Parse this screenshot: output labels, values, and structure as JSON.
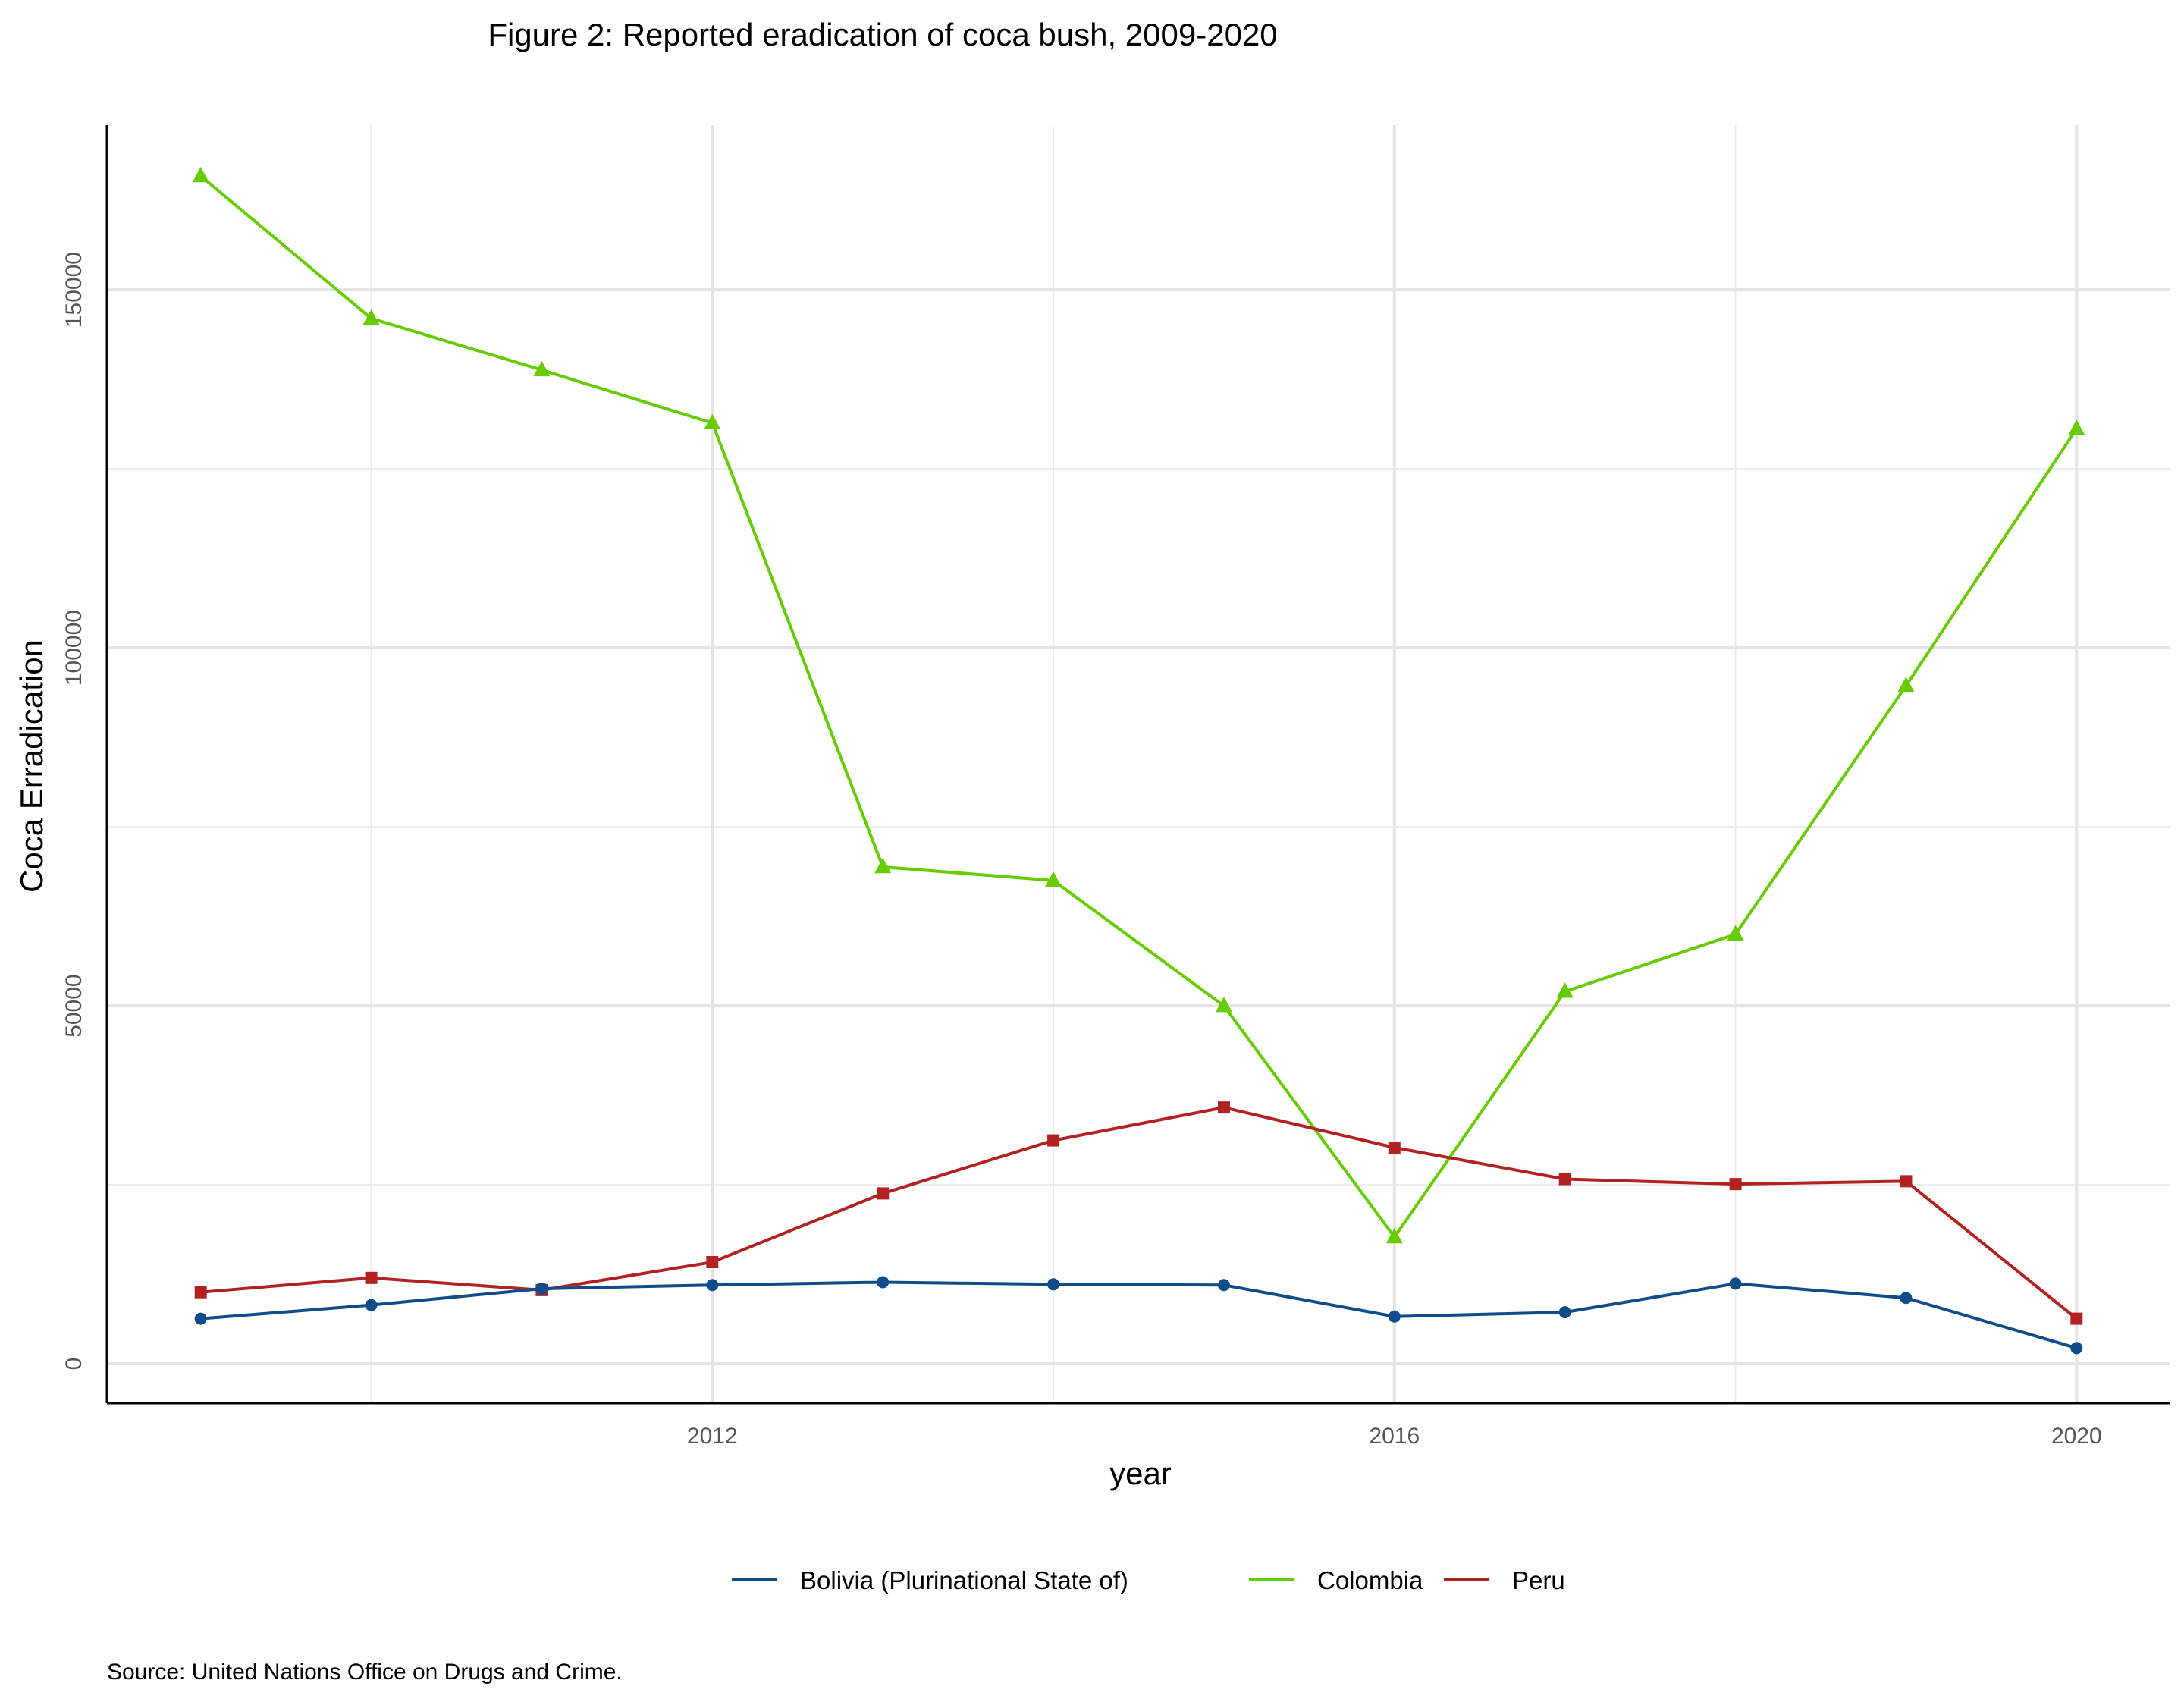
{
  "chart_data": {
    "type": "line",
    "title": "Figure 2: Reported eradication of coca bush, 2009-2020",
    "xlabel": "year",
    "ylabel": "Coca Erradication",
    "x": [
      2009,
      2010,
      2011,
      2012,
      2013,
      2014,
      2015,
      2016,
      2017,
      2018,
      2019,
      2020
    ],
    "xlim": [
      2008.45,
      2020.55
    ],
    "ylim": [
      -5500,
      173000
    ],
    "x_ticks": [
      2012,
      2016,
      2020
    ],
    "x_tick_labels": [
      "2012",
      "2016",
      "2020"
    ],
    "x_minor": [
      2010,
      2014,
      2018
    ],
    "y_ticks": [
      0,
      50000,
      100000,
      150000
    ],
    "y_tick_labels": [
      "0",
      "50000",
      "100000",
      "150000"
    ],
    "y_minor": [
      25000,
      75000,
      125000
    ],
    "grid": true,
    "legend_position": "bottom",
    "series": [
      {
        "name": "Bolivia (Plurinational State of)",
        "color": "#0f4c8a",
        "marker": "circle",
        "values": [
          6300,
          8200,
          10500,
          11000,
          11400,
          11100,
          11000,
          6600,
          7200,
          11200,
          9200,
          2200
        ]
      },
      {
        "name": "Colombia",
        "color": "#66cc00",
        "marker": "triangle",
        "values": [
          165900,
          146000,
          138800,
          131400,
          69400,
          67500,
          50000,
          17700,
          52000,
          60000,
          94700,
          130600
        ]
      },
      {
        "name": "Peru",
        "color": "#b22222",
        "marker": "square",
        "values": [
          10000,
          12000,
          10300,
          14200,
          23800,
          31200,
          35800,
          30200,
          25800,
          25100,
          25500,
          6300
        ]
      }
    ]
  },
  "caption": "Source: United Nations Office on Drugs and Crime."
}
